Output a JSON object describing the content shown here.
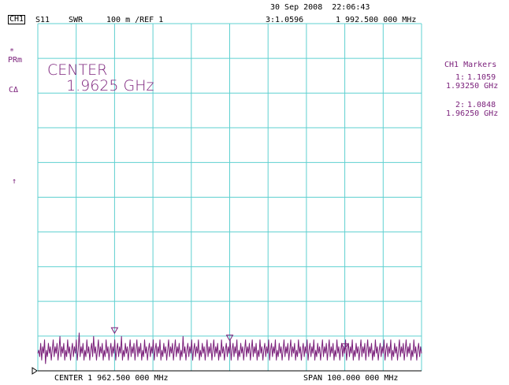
{
  "header": {
    "datetime": "30 Sep 2008  22:06:43",
    "channel": "CH1",
    "parameter": "S11",
    "format": "SWR",
    "scale": "100 m /REF 1",
    "active_marker": "3:1.0596",
    "active_marker_freq": "1 992.500 000 MHz"
  },
  "left_annotations": {
    "star": "*",
    "prm": "PRm",
    "delta": "CΔ",
    "ref_arrow": "↑"
  },
  "center_annotation": {
    "label": "CENTER",
    "value": "1.9625 GHz"
  },
  "marker_panel": {
    "title": "CH1 Markers",
    "markers": [
      {
        "index": "1:",
        "value": "1.1059",
        "freq": "1.93250 GHz"
      },
      {
        "index": "2:",
        "value": "1.0848",
        "freq": "1.96250 GHz"
      }
    ]
  },
  "footer": {
    "center": "CENTER 1 962.500 000 MHz",
    "span": "SPAN 100.000 000 MHz"
  },
  "colors": {
    "grid": "#5fd0d0",
    "trace": "#7a1f7a",
    "background": "#ffffff"
  },
  "chart_data": {
    "type": "line",
    "xlim": [
      1912.5,
      2012.5
    ],
    "ylim": [
      1.0,
      2.0
    ],
    "x_divisions": 10,
    "y_divisions": 10,
    "grid": true,
    "reference_value": 1.0,
    "markers": [
      {
        "n": 1,
        "x": 1932.5,
        "y": 1.1059
      },
      {
        "n": 2,
        "x": 1962.5,
        "y": 1.0848
      },
      {
        "n": 3,
        "x": 1992.5,
        "y": 1.0596
      }
    ],
    "series": [
      {
        "values_y": [
          1.05,
          1.06,
          1.04,
          1.08,
          1.03,
          1.07,
          1.05,
          1.09,
          1.02,
          1.06,
          1.04,
          1.08,
          1.05,
          1.07,
          1.03,
          1.06,
          1.09,
          1.04,
          1.07,
          1.05,
          1.08,
          1.03,
          1.06,
          1.1,
          1.04,
          1.07,
          1.05,
          1.08,
          1.03,
          1.06,
          1.04,
          1.09,
          1.05,
          1.07,
          1.03,
          1.06,
          1.08,
          1.04,
          1.07,
          1.05,
          1.09,
          1.03,
          1.06,
          1.11,
          1.04,
          1.07,
          1.05,
          1.08,
          1.03,
          1.06,
          1.04,
          1.09,
          1.05,
          1.07,
          1.03,
          1.06,
          1.08,
          1.04,
          1.1,
          1.05,
          1.07,
          1.03,
          1.06,
          1.09,
          1.04,
          1.07,
          1.05,
          1.08,
          1.03,
          1.06,
          1.04,
          1.09,
          1.05,
          1.07,
          1.03,
          1.06,
          1.08,
          1.04,
          1.07,
          1.05,
          1.09,
          1.03,
          1.06,
          1.08,
          1.04,
          1.07,
          1.05,
          1.1,
          1.03,
          1.06,
          1.04,
          1.08,
          1.05,
          1.07,
          1.03,
          1.06,
          1.09,
          1.04,
          1.07,
          1.05,
          1.08,
          1.03,
          1.06,
          1.09,
          1.04,
          1.07,
          1.05,
          1.08,
          1.03,
          1.06,
          1.04,
          1.09,
          1.05,
          1.07,
          1.03,
          1.06,
          1.08,
          1.04,
          1.07,
          1.05,
          1.09,
          1.03,
          1.06,
          1.08,
          1.04,
          1.07,
          1.05,
          1.09,
          1.03,
          1.06,
          1.04,
          1.08,
          1.05,
          1.07,
          1.03,
          1.06,
          1.09,
          1.04,
          1.07,
          1.05,
          1.08,
          1.03,
          1.06,
          1.09,
          1.04,
          1.07,
          1.05,
          1.08,
          1.03,
          1.06,
          1.04,
          1.1,
          1.05,
          1.07,
          1.03,
          1.06,
          1.08,
          1.04,
          1.07,
          1.05,
          1.09,
          1.03,
          1.06,
          1.08,
          1.04,
          1.07,
          1.05,
          1.09,
          1.03,
          1.06,
          1.04,
          1.08,
          1.05,
          1.07,
          1.03,
          1.06,
          1.09,
          1.04,
          1.07,
          1.05,
          1.08,
          1.03,
          1.06,
          1.09,
          1.04,
          1.07,
          1.05,
          1.08,
          1.03,
          1.06,
          1.04,
          1.09,
          1.05,
          1.07,
          1.03,
          1.06,
          1.08,
          1.04,
          1.07,
          1.05,
          1.09,
          1.03,
          1.06,
          1.08,
          1.04,
          1.07,
          1.05,
          1.09,
          1.03,
          1.06,
          1.04,
          1.08,
          1.05,
          1.07,
          1.03,
          1.06,
          1.09,
          1.04,
          1.07,
          1.05,
          1.08,
          1.03,
          1.06,
          1.09,
          1.04,
          1.07,
          1.05,
          1.08,
          1.03,
          1.06,
          1.04,
          1.09,
          1.05,
          1.07,
          1.03,
          1.06,
          1.08,
          1.04,
          1.07,
          1.05,
          1.09,
          1.03,
          1.06,
          1.08,
          1.04,
          1.07,
          1.05,
          1.09,
          1.03,
          1.06,
          1.04,
          1.08,
          1.05,
          1.07,
          1.03,
          1.06,
          1.09,
          1.04,
          1.07,
          1.05,
          1.08,
          1.03,
          1.06,
          1.09,
          1.04,
          1.07,
          1.05,
          1.08,
          1.03,
          1.06,
          1.04,
          1.09,
          1.05,
          1.07,
          1.03,
          1.06,
          1.08,
          1.04,
          1.07,
          1.05,
          1.09,
          1.03,
          1.06,
          1.08,
          1.04,
          1.07,
          1.05,
          1.09,
          1.03,
          1.06,
          1.04,
          1.08,
          1.05,
          1.07,
          1.03,
          1.06,
          1.09,
          1.04,
          1.07,
          1.05,
          1.08,
          1.03,
          1.06,
          1.09,
          1.04,
          1.07,
          1.05,
          1.08,
          1.03,
          1.06,
          1.04,
          1.09,
          1.05,
          1.07,
          1.03,
          1.06,
          1.08,
          1.04,
          1.07,
          1.05,
          1.09,
          1.03,
          1.06,
          1.08,
          1.04,
          1.07,
          1.05,
          1.09,
          1.03,
          1.06,
          1.04,
          1.08,
          1.05,
          1.07,
          1.03,
          1.06,
          1.09,
          1.04,
          1.07,
          1.05,
          1.08,
          1.03,
          1.06,
          1.09,
          1.04,
          1.07,
          1.05,
          1.08,
          1.03,
          1.06,
          1.04,
          1.09,
          1.05,
          1.07,
          1.03,
          1.06,
          1.08,
          1.04,
          1.07,
          1.05,
          1.09,
          1.03,
          1.06,
          1.08,
          1.04,
          1.07,
          1.05,
          1.09,
          1.03,
          1.06,
          1.04,
          1.08,
          1.05,
          1.07,
          1.03,
          1.06,
          1.09,
          1.04,
          1.07,
          1.05,
          1.08,
          1.03,
          1.06,
          1.09,
          1.04,
          1.07,
          1.05,
          1.08,
          1.03,
          1.06,
          1.04,
          1.09,
          1.05,
          1.07,
          1.03,
          1.06,
          1.08,
          1.04,
          1.07,
          1.05
        ]
      }
    ]
  }
}
